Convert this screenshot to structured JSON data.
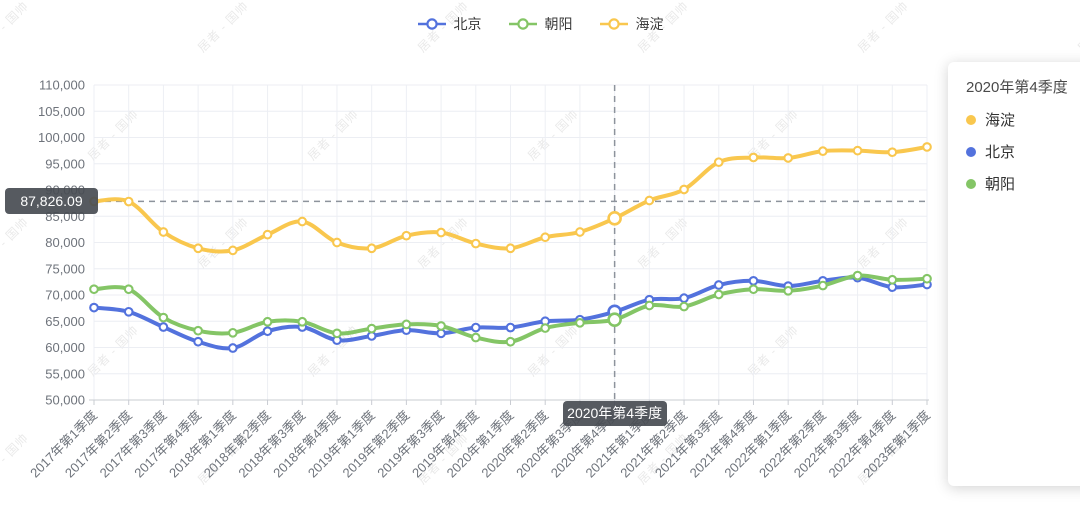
{
  "watermark": {
    "text": "居者 - 国帅"
  },
  "legend": {
    "items": [
      {
        "id": "beijing",
        "label": "北京",
        "color": "#5372dd"
      },
      {
        "id": "chaoyang",
        "label": "朝阳",
        "color": "#84c566"
      },
      {
        "id": "haidian",
        "label": "海淀",
        "color": "#f9c74e"
      }
    ]
  },
  "crosshair": {
    "x_index": 15,
    "x_label": "2020年第4季度",
    "y_value": 87826.09,
    "y_label": "87,826.09"
  },
  "tooltip": {
    "title": "2020年第4季度",
    "items": [
      {
        "id": "haidian",
        "label": "海淀",
        "color": "#f9c74e"
      },
      {
        "id": "beijing",
        "label": "北京",
        "color": "#5372dd"
      },
      {
        "id": "chaoyang",
        "label": "朝阳",
        "color": "#84c566"
      }
    ]
  },
  "chart_data": {
    "type": "line",
    "smooth": true,
    "title": "",
    "xlabel": "",
    "ylabel": "",
    "grid": true,
    "legend_position": "top",
    "ylim": [
      50000,
      110000
    ],
    "ytick_step": 5000,
    "categories": [
      "2017年第1季度",
      "2017年第2季度",
      "2017年第3季度",
      "2017年第4季度",
      "2018年第1季度",
      "2018年第2季度",
      "2018年第3季度",
      "2018年第4季度",
      "2019年第1季度",
      "2019年第2季度",
      "2019年第3季度",
      "2019年第4季度",
      "2020年第1季度",
      "2020年第2季度",
      "2020年第3季度",
      "2020年第4季度",
      "2021年第1季度",
      "2021年第2季度",
      "2021年第3季度",
      "2021年第4季度",
      "2022年第1季度",
      "2022年第2季度",
      "2022年第3季度",
      "2022年第4季度",
      "2023年第1季度"
    ],
    "series": [
      {
        "name": "北京",
        "id": "beijing",
        "color": "#5372dd",
        "values": [
          67600,
          66800,
          63900,
          61100,
          59900,
          63100,
          63900,
          61400,
          62200,
          63300,
          62700,
          63800,
          63800,
          65000,
          65300,
          66800,
          69100,
          69400,
          71900,
          72700,
          71700,
          72700,
          73300,
          71500,
          72000
        ]
      },
      {
        "name": "朝阳",
        "id": "chaoyang",
        "color": "#84c566",
        "values": [
          71100,
          71100,
          65700,
          63200,
          62800,
          64900,
          64900,
          62700,
          63600,
          64400,
          64100,
          61900,
          61100,
          63700,
          64700,
          65300,
          68000,
          67800,
          70100,
          71100,
          70800,
          71800,
          73700,
          72900,
          73100
        ]
      },
      {
        "name": "海淀",
        "id": "haidian",
        "color": "#f9c74e",
        "values": [
          87826,
          87800,
          82000,
          78900,
          78500,
          81500,
          84000,
          80000,
          78900,
          81300,
          81900,
          79800,
          78900,
          81000,
          82000,
          84600,
          88000,
          90100,
          95300,
          96200,
          96100,
          97400,
          97500,
          97200,
          98200
        ]
      }
    ]
  }
}
